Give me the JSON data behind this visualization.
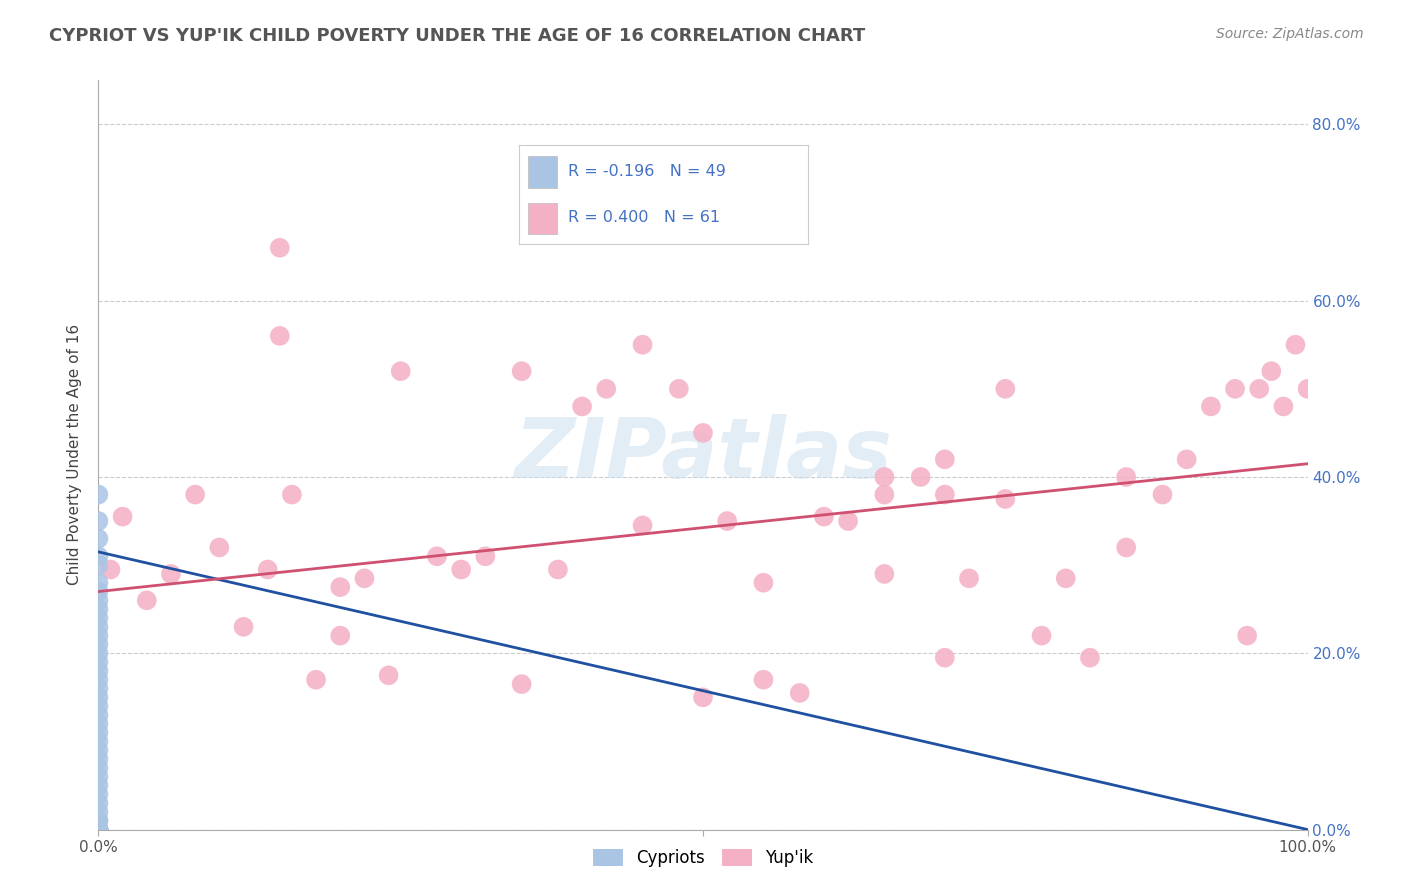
{
  "title": "CYPRIOT VS YUP'IK CHILD POVERTY UNDER THE AGE OF 16 CORRELATION CHART",
  "source": "Source: ZipAtlas.com",
  "ylabel": "Child Poverty Under the Age of 16",
  "xlim": [
    0.0,
    1.0
  ],
  "ylim": [
    0.0,
    0.85
  ],
  "yticks": [
    0.0,
    0.2,
    0.4,
    0.6,
    0.8
  ],
  "ytick_labels": [
    "0.0%",
    "20.0%",
    "40.0%",
    "60.0%",
    "80.0%"
  ],
  "xtick_labels_left": "0.0%",
  "xtick_labels_right": "100.0%",
  "background_color": "#ffffff",
  "grid_color": "#cccccc",
  "title_color": "#555555",
  "source_color": "#888888",
  "cypriot_color": "#aac4e4",
  "yupik_color": "#f4b0c4",
  "cypriot_line_color": "#2050a0",
  "yupik_line_color": "#d05070",
  "legend_color": "#4472c4",
  "cypriot_R": -0.196,
  "cypriot_N": 49,
  "yupik_R": 0.4,
  "yupik_N": 61,
  "watermark": "ZIPatlas",
  "cypriot_line_x0": 0.0,
  "cypriot_line_y0": 0.315,
  "cypriot_line_x1": 1.0,
  "cypriot_line_y1": 0.0,
  "yupik_line_x0": 0.0,
  "yupik_line_y0": 0.27,
  "yupik_line_x1": 1.0,
  "yupik_line_y1": 0.415,
  "cypriot_x": [
    0.0,
    0.0,
    0.0,
    0.0,
    0.0,
    0.0,
    0.0,
    0.0,
    0.0,
    0.0,
    0.0,
    0.0,
    0.0,
    0.0,
    0.0,
    0.0,
    0.0,
    0.0,
    0.0,
    0.0,
    0.0,
    0.0,
    0.0,
    0.0,
    0.0,
    0.0,
    0.0,
    0.0,
    0.0,
    0.0,
    0.0,
    0.0,
    0.0,
    0.0,
    0.0,
    0.0,
    0.0,
    0.0,
    0.0,
    0.0,
    0.0,
    0.0,
    0.0,
    0.0,
    0.0,
    0.0,
    0.0,
    0.0,
    0.0
  ],
  "cypriot_y": [
    0.0,
    0.0,
    0.0,
    0.0,
    0.0,
    0.0,
    0.0,
    0.0,
    0.0,
    0.0,
    0.0,
    0.0,
    0.0,
    0.0,
    0.0,
    0.01,
    0.01,
    0.02,
    0.03,
    0.04,
    0.05,
    0.06,
    0.07,
    0.08,
    0.09,
    0.1,
    0.11,
    0.12,
    0.13,
    0.14,
    0.15,
    0.16,
    0.17,
    0.18,
    0.19,
    0.2,
    0.21,
    0.22,
    0.23,
    0.24,
    0.25,
    0.26,
    0.27,
    0.28,
    0.3,
    0.31,
    0.33,
    0.35,
    0.38
  ],
  "yupik_x": [
    0.01,
    0.02,
    0.04,
    0.06,
    0.08,
    0.1,
    0.12,
    0.14,
    0.16,
    0.18,
    0.2,
    0.2,
    0.22,
    0.24,
    0.28,
    0.3,
    0.32,
    0.35,
    0.38,
    0.4,
    0.42,
    0.45,
    0.48,
    0.5,
    0.52,
    0.55,
    0.58,
    0.6,
    0.62,
    0.65,
    0.65,
    0.68,
    0.7,
    0.7,
    0.72,
    0.75,
    0.78,
    0.8,
    0.82,
    0.85,
    0.88,
    0.9,
    0.92,
    0.94,
    0.95,
    0.96,
    0.97,
    0.98,
    0.99,
    1.0,
    0.15,
    0.25,
    0.35,
    0.45,
    0.55,
    0.65,
    0.75,
    0.85,
    0.15,
    0.5,
    0.7
  ],
  "yupik_y": [
    0.295,
    0.355,
    0.26,
    0.29,
    0.38,
    0.32,
    0.23,
    0.295,
    0.38,
    0.17,
    0.275,
    0.22,
    0.285,
    0.175,
    0.31,
    0.295,
    0.31,
    0.165,
    0.295,
    0.48,
    0.5,
    0.345,
    0.5,
    0.45,
    0.35,
    0.28,
    0.155,
    0.355,
    0.35,
    0.38,
    0.4,
    0.4,
    0.38,
    0.42,
    0.285,
    0.375,
    0.22,
    0.285,
    0.195,
    0.4,
    0.38,
    0.42,
    0.48,
    0.5,
    0.22,
    0.5,
    0.52,
    0.48,
    0.55,
    0.5,
    0.66,
    0.52,
    0.52,
    0.55,
    0.17,
    0.29,
    0.5,
    0.32,
    0.56,
    0.15,
    0.195
  ]
}
